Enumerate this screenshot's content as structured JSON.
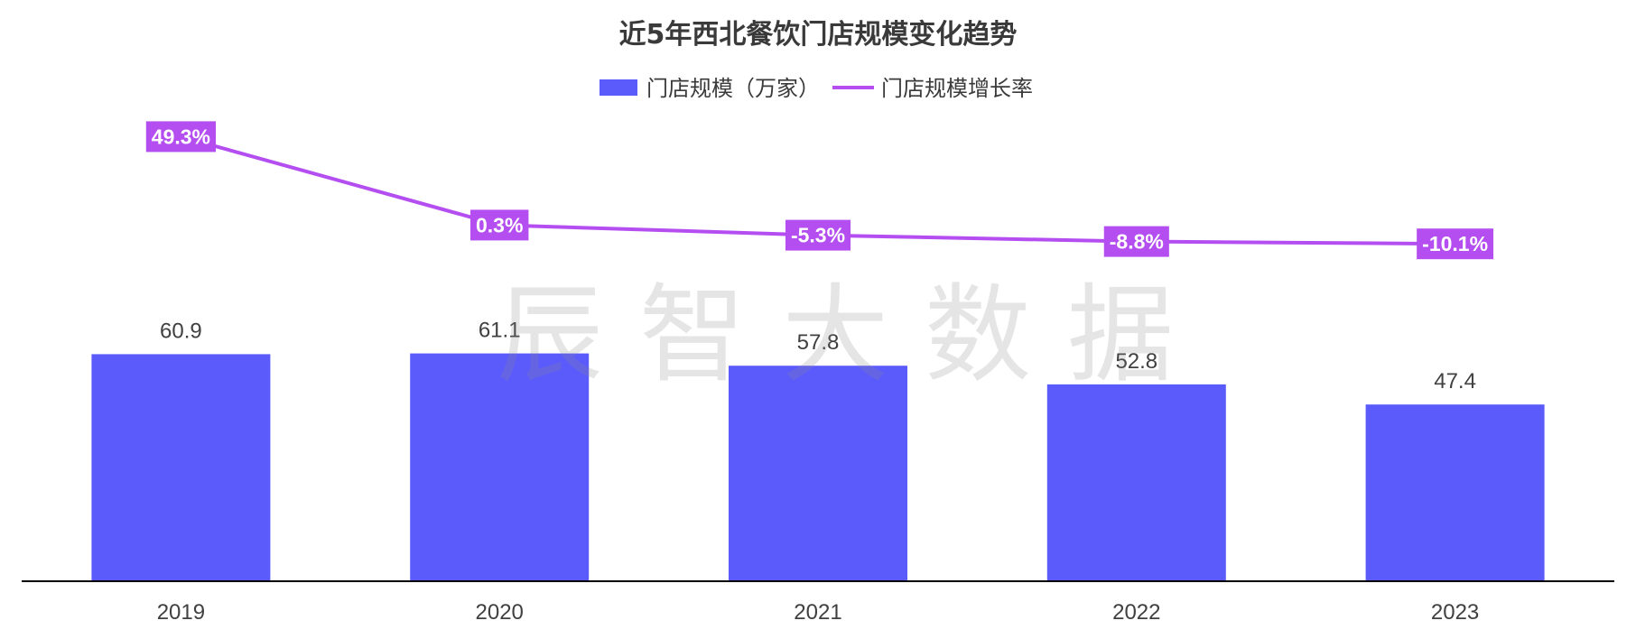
{
  "colors": {
    "bar": "#5B5BFC",
    "line": "#B44EF0",
    "axis": "#000000",
    "text": "#404040"
  },
  "watermark": "辰智大数据",
  "chart_data": {
    "type": "bar",
    "title": "近5年西北餐饮门店规模变化趋势",
    "categories": [
      "2019",
      "2020",
      "2021",
      "2022",
      "2023"
    ],
    "series": [
      {
        "name": "门店规模（万家）",
        "type": "bar",
        "values": [
          60.9,
          61.1,
          57.8,
          52.8,
          47.4
        ],
        "labels": [
          "60.9",
          "61.1",
          "57.8",
          "52.8",
          "47.4"
        ]
      },
      {
        "name": "门店规模增长率",
        "type": "line",
        "values": [
          49.3,
          0.3,
          -5.3,
          -8.8,
          -10.1
        ],
        "labels": [
          "49.3%",
          "0.3%",
          "-5.3%",
          "-8.8%",
          "-10.1%"
        ]
      }
    ],
    "ylim_bar": [
      0,
      122
    ],
    "ylim_line": [
      -140,
      60
    ],
    "legend": "top-center",
    "grid": false
  }
}
